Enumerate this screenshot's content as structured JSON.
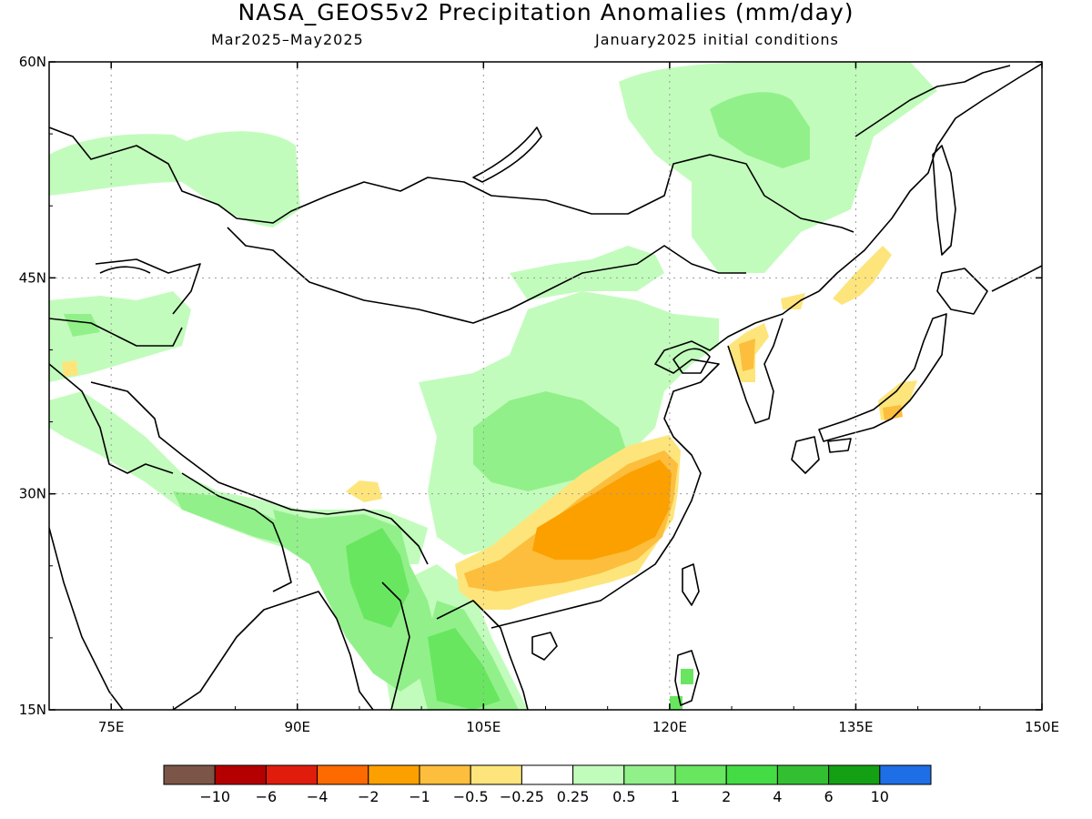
{
  "title": "NASA_GEOS5v2 Precipitation Anomalies (mm/day)",
  "subtitle_left": "Mar2025–May2025",
  "subtitle_right": "January2025 initial conditions",
  "map": {
    "lon_range": [
      70,
      150
    ],
    "lat_range": [
      15,
      60
    ],
    "lon_ticks": [
      "75E",
      "90E",
      "105E",
      "120E",
      "135E",
      "150E"
    ],
    "lon_tick_values": [
      75,
      90,
      105,
      120,
      135,
      150
    ],
    "lat_ticks": [
      "15N",
      "30N",
      "45N",
      "60N"
    ],
    "lat_tick_values": [
      15,
      30,
      45,
      60
    ],
    "gridlines": "dotted"
  },
  "colorbar": {
    "colors": [
      "#7a5548",
      "#b40000",
      "#e01c0c",
      "#fc6a00",
      "#fca000",
      "#fcbe3c",
      "#fde57c",
      "#ffffff",
      "#c2fcbc",
      "#92f08a",
      "#68e660",
      "#44dc44",
      "#32c032",
      "#14a014",
      "#1e6ee6"
    ],
    "labels": [
      "−10",
      "−6",
      "−4",
      "−2",
      "−1",
      "−0.5",
      "−0.25",
      "0.25",
      "0.5",
      "1",
      "2",
      "4",
      "6",
      "10"
    ]
  }
}
